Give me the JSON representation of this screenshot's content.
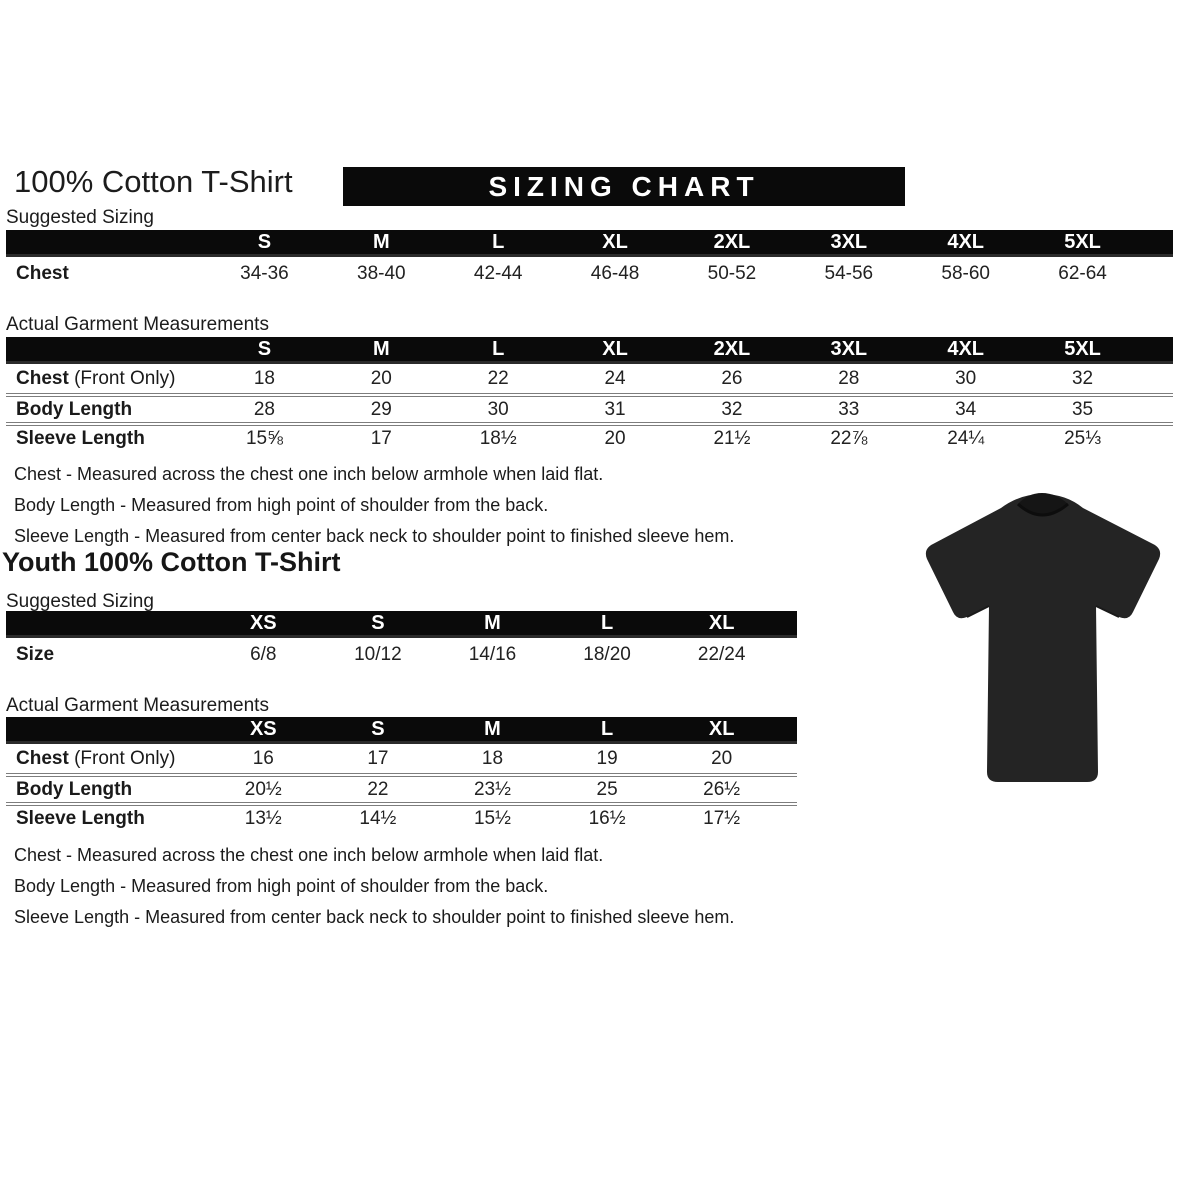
{
  "banner": {
    "text": "SIZING CHART",
    "bg_color": "#0a0a0a",
    "text_color": "#ffffff"
  },
  "adult_section": {
    "title": "100% Cotton T-Shirt",
    "suggested_label": "Suggested Sizing",
    "actual_label": "Actual Garment Measurements",
    "suggested_table": {
      "columns": [
        "S",
        "M",
        "L",
        "XL",
        "2XL",
        "3XL",
        "4XL",
        "5XL"
      ],
      "rows": [
        {
          "label": "Chest",
          "suffix": "",
          "values": [
            "34-36",
            "38-40",
            "42-44",
            "46-48",
            "50-52",
            "54-56",
            "58-60",
            "62-64"
          ]
        }
      ]
    },
    "actual_table": {
      "columns": [
        "S",
        "M",
        "L",
        "XL",
        "2XL",
        "3XL",
        "4XL",
        "5XL"
      ],
      "rows": [
        {
          "label": "Chest",
          "suffix": " (Front Only)",
          "values": [
            "18",
            "20",
            "22",
            "24",
            "26",
            "28",
            "30",
            "32"
          ]
        },
        {
          "label": "Body Length",
          "suffix": "",
          "values": [
            "28",
            "29",
            "30",
            "31",
            "32",
            "33",
            "34",
            "35"
          ]
        },
        {
          "label": "Sleeve Length",
          "suffix": "",
          "values": [
            "15⅝",
            "17",
            "18½",
            "20",
            "21½",
            "22⅞",
            "24¼",
            "25⅓"
          ]
        }
      ]
    },
    "notes": [
      "Chest - Measured across the chest one inch below armhole when laid flat.",
      "Body Length - Measured from high point of shoulder from the back.",
      "Sleeve Length - Measured from center back neck to shoulder point to finished sleeve hem."
    ]
  },
  "youth_section": {
    "title": "Youth 100% Cotton T-Shirt",
    "suggested_label": "Suggested Sizing",
    "actual_label": "Actual Garment Measurements",
    "suggested_table": {
      "columns": [
        "XS",
        "S",
        "M",
        "L",
        "XL"
      ],
      "rows": [
        {
          "label": "Size",
          "suffix": "",
          "values": [
            "6/8",
            "10/12",
            "14/16",
            "18/20",
            "22/24"
          ]
        }
      ]
    },
    "actual_table": {
      "columns": [
        "XS",
        "S",
        "M",
        "L",
        "XL"
      ],
      "rows": [
        {
          "label": "Chest",
          "suffix": " (Front Only)",
          "values": [
            "16",
            "17",
            "18",
            "19",
            "20"
          ]
        },
        {
          "label": "Body Length",
          "suffix": "",
          "values": [
            "20½",
            "22",
            "23½",
            "25",
            "26½"
          ]
        },
        {
          "label": "Sleeve Length",
          "suffix": "",
          "values": [
            "13½",
            "14½",
            "15½",
            "16½",
            "17½"
          ]
        }
      ]
    },
    "notes": [
      "Chest - Measured across the chest one inch below armhole when laid flat.",
      "Body Length - Measured from high point of shoulder from the back.",
      "Sleeve Length - Measured from center back neck to shoulder point to finished sleeve hem."
    ]
  },
  "shirt_image": {
    "description": "blank black short-sleeve t-shirt photo",
    "shirt_color": "#242424",
    "collar_color": "#151515"
  }
}
